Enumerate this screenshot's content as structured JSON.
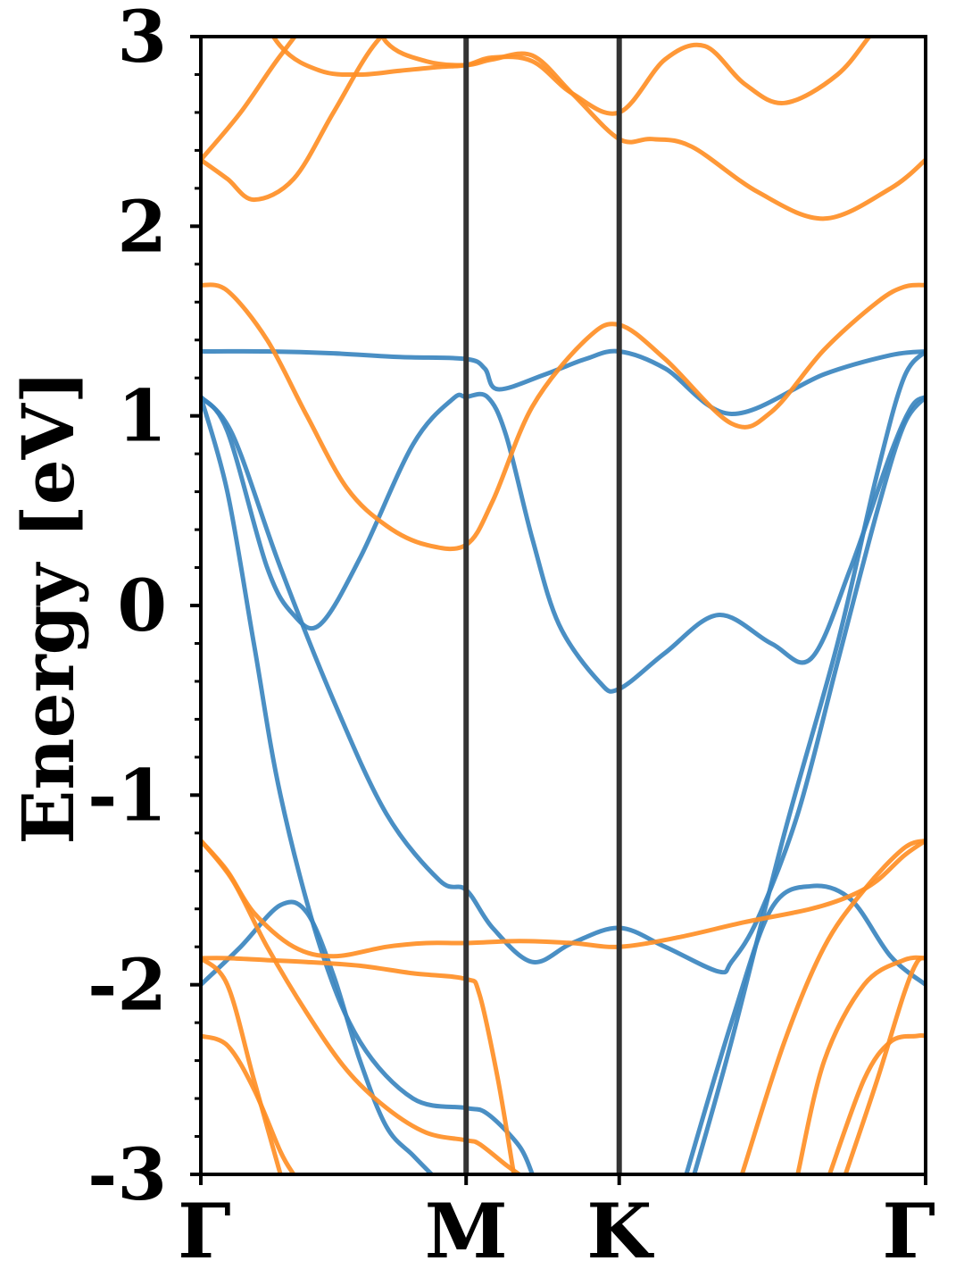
{
  "chart_data": {
    "type": "line",
    "title": "",
    "ylabel": "Energy [eV]",
    "xlabel": "",
    "ylim": [
      -3,
      3
    ],
    "yticks": [
      -3,
      -2,
      -1,
      0,
      1,
      2,
      3
    ],
    "ytick_labels": [
      "-3",
      "-2",
      "-1",
      "0",
      "1",
      "2",
      "3"
    ],
    "xlim": [
      0,
      2.732
    ],
    "kpoints": [
      {
        "label": "Γ",
        "x": 0
      },
      {
        "label": "M",
        "x": 1.0
      },
      {
        "label": "K",
        "x": 1.577
      },
      {
        "label": "Γ",
        "x": 2.732
      }
    ],
    "grid": false,
    "colors": {
      "series_a": "#3b86bf",
      "series_b": "#ff8f26",
      "kpoint_line": "#333333"
    },
    "series": [
      {
        "color_key": "series_a",
        "x": [
          0,
          0.25,
          0.5,
          0.75,
          1.0,
          1.07,
          1.12,
          1.3,
          1.45,
          1.577,
          1.75,
          2.0,
          2.35,
          2.6,
          2.732
        ],
        "y": [
          1.34,
          1.34,
          1.33,
          1.31,
          1.3,
          1.25,
          1.14,
          1.22,
          1.3,
          1.34,
          1.25,
          1.01,
          1.22,
          1.32,
          1.34
        ]
      },
      {
        "color_key": "series_a",
        "x": [
          0,
          0.1,
          0.25,
          0.35,
          0.45,
          0.6,
          0.8,
          0.95,
          1.0,
          1.08,
          1.15,
          1.25,
          1.35,
          1.5,
          1.577,
          1.75,
          1.95,
          2.15,
          2.3,
          2.45,
          2.6,
          2.68,
          2.732
        ],
        "y": [
          1.1,
          0.92,
          0.2,
          -0.05,
          -0.1,
          0.25,
          0.85,
          1.09,
          1.1,
          1.1,
          0.9,
          0.35,
          -0.1,
          -0.4,
          -0.44,
          -0.25,
          -0.05,
          -0.2,
          -0.28,
          0.2,
          0.8,
          1.05,
          1.1
        ]
      },
      {
        "color_key": "series_a",
        "x": [
          0,
          0.12,
          0.3,
          0.5,
          0.7,
          0.9,
          1.0,
          1.1,
          1.25,
          1.4,
          1.577,
          1.75,
          1.95,
          2.0,
          2.1,
          2.25,
          2.4,
          2.55,
          2.65,
          2.732
        ],
        "y": [
          1.1,
          0.9,
          0.2,
          -0.5,
          -1.1,
          -1.45,
          -1.5,
          -1.7,
          -1.88,
          -1.78,
          -1.7,
          -1.8,
          -1.93,
          -1.88,
          -1.65,
          -1.1,
          -0.3,
          0.5,
          0.95,
          1.1
        ]
      },
      {
        "color_key": "series_a",
        "x": [
          0,
          0.1,
          0.2,
          0.3,
          0.45,
          0.6,
          0.8,
          1.0,
          1.08,
          1.2,
          1.25
        ],
        "y": [
          1.1,
          0.6,
          -0.2,
          -1.0,
          -1.8,
          -2.3,
          -2.6,
          -2.65,
          -2.68,
          -2.85,
          -3.0
        ]
      },
      {
        "color_key": "series_a",
        "x": [
          0,
          0.15,
          0.3,
          0.4,
          0.5,
          0.6,
          0.7,
          0.8,
          0.87
        ],
        "y": [
          -2.0,
          -1.8,
          -1.58,
          -1.62,
          -1.95,
          -2.4,
          -2.75,
          -2.9,
          -3.0
        ]
      },
      {
        "color_key": "series_a",
        "x": [
          1.83,
          2.0,
          2.15,
          2.3,
          2.45,
          2.6,
          2.732
        ],
        "y": [
          -3.0,
          -2.2,
          -1.6,
          -1.48,
          -1.55,
          -1.85,
          -2.0
        ]
      },
      {
        "color_key": "series_a",
        "x": [
          1.86,
          2.0,
          2.2,
          2.4,
          2.55,
          2.65,
          2.732
        ],
        "y": [
          -3.0,
          -2.3,
          -1.2,
          -0.2,
          0.7,
          1.2,
          1.34
        ]
      },
      {
        "color_key": "series_b",
        "x": [
          0,
          0.1,
          0.25,
          0.4,
          0.55,
          0.7,
          0.85,
          1.0,
          1.1,
          1.25,
          1.45,
          1.577,
          1.75,
          2.0,
          2.15,
          2.35,
          2.55,
          2.65,
          2.732
        ],
        "y": [
          1.69,
          1.66,
          1.4,
          1.0,
          0.62,
          0.42,
          0.32,
          0.32,
          0.55,
          1.05,
          1.4,
          1.48,
          1.3,
          0.96,
          1.02,
          1.35,
          1.6,
          1.68,
          1.69
        ]
      },
      {
        "color_key": "series_b",
        "x": [
          0,
          0.1,
          0.2,
          0.35,
          0.5,
          0.65,
          0.8,
          0.95,
          1.0
        ],
        "y": [
          2.35,
          2.25,
          2.14,
          2.25,
          2.6,
          2.95,
          3.15,
          3.25,
          3.3
        ]
      },
      {
        "color_key": "series_b",
        "x": [
          0,
          0.15,
          0.3,
          0.45,
          0.6,
          0.7,
          0.85,
          1.0,
          1.1,
          1.25,
          1.4,
          1.577,
          1.7,
          1.85,
          2.1,
          2.35,
          2.6,
          2.732
        ],
        "y": [
          2.35,
          2.6,
          2.9,
          3.15,
          3.25,
          2.97,
          2.87,
          2.85,
          2.88,
          2.9,
          2.7,
          2.46,
          2.46,
          2.42,
          2.18,
          2.04,
          2.2,
          2.35
        ]
      },
      {
        "color_key": "series_b",
        "x": [
          0.15,
          0.3,
          0.45,
          0.6,
          0.75,
          0.9,
          1.0,
          1.1,
          1.25,
          1.4,
          1.577,
          1.75,
          1.9,
          2.05,
          2.2,
          2.4,
          2.55,
          2.732
        ],
        "y": [
          3.3,
          2.95,
          2.82,
          2.8,
          2.82,
          2.84,
          2.85,
          2.89,
          2.87,
          2.7,
          2.6,
          2.88,
          2.95,
          2.75,
          2.65,
          2.8,
          3.05,
          3.3
        ]
      },
      {
        "color_key": "series_b",
        "x": [
          0,
          0.1,
          0.2,
          0.35,
          0.5,
          0.7,
          0.85,
          1.0,
          1.2,
          1.4,
          1.577,
          1.8,
          2.05,
          2.3,
          2.45,
          2.55,
          2.65,
          2.732
        ],
        "y": [
          -1.24,
          -1.4,
          -1.62,
          -1.8,
          -1.85,
          -1.8,
          -1.78,
          -1.78,
          -1.77,
          -1.78,
          -1.8,
          -1.75,
          -1.67,
          -1.6,
          -1.53,
          -1.45,
          -1.32,
          -1.24
        ]
      },
      {
        "color_key": "series_b",
        "x": [
          0,
          0.1,
          0.25,
          0.4,
          0.6,
          0.8,
          1.0,
          1.05,
          1.12,
          1.18
        ],
        "y": [
          -1.86,
          -1.86,
          -1.87,
          -1.88,
          -1.9,
          -1.94,
          -1.97,
          -2.05,
          -2.5,
          -3.0
        ]
      },
      {
        "color_key": "series_b",
        "x": [
          0,
          0.12,
          0.25,
          0.4,
          0.55,
          0.7,
          0.85,
          1.0,
          1.05,
          1.15,
          1.2
        ],
        "y": [
          -1.24,
          -1.45,
          -1.8,
          -2.15,
          -2.45,
          -2.65,
          -2.78,
          -2.82,
          -2.84,
          -2.95,
          -3.0
        ]
      },
      {
        "color_key": "series_b",
        "x": [
          0,
          0.1,
          0.2,
          0.3,
          0.35
        ],
        "y": [
          -2.27,
          -2.32,
          -2.55,
          -2.88,
          -3.0
        ]
      },
      {
        "color_key": "series_b",
        "x": [
          0,
          0.1,
          0.2,
          0.3
        ],
        "y": [
          -1.86,
          -2.0,
          -2.5,
          -3.0
        ]
      },
      {
        "color_key": "series_b",
        "x": [
          2.04,
          2.2,
          2.35,
          2.5,
          2.65,
          2.732
        ],
        "y": [
          -3.0,
          -2.3,
          -1.8,
          -1.5,
          -1.28,
          -1.24
        ]
      },
      {
        "color_key": "series_b",
        "x": [
          2.25,
          2.35,
          2.5,
          2.65,
          2.732
        ],
        "y": [
          -3.0,
          -2.4,
          -2.0,
          -1.87,
          -1.86
        ]
      },
      {
        "color_key": "series_b",
        "x": [
          2.37,
          2.5,
          2.6,
          2.7,
          2.732
        ],
        "y": [
          -3.0,
          -2.5,
          -2.3,
          -2.27,
          -2.27
        ]
      },
      {
        "color_key": "series_b",
        "x": [
          2.43,
          2.55,
          2.65,
          2.7,
          2.732
        ],
        "y": [
          -3.0,
          -2.5,
          -2.05,
          -1.88,
          -1.86
        ]
      }
    ]
  }
}
